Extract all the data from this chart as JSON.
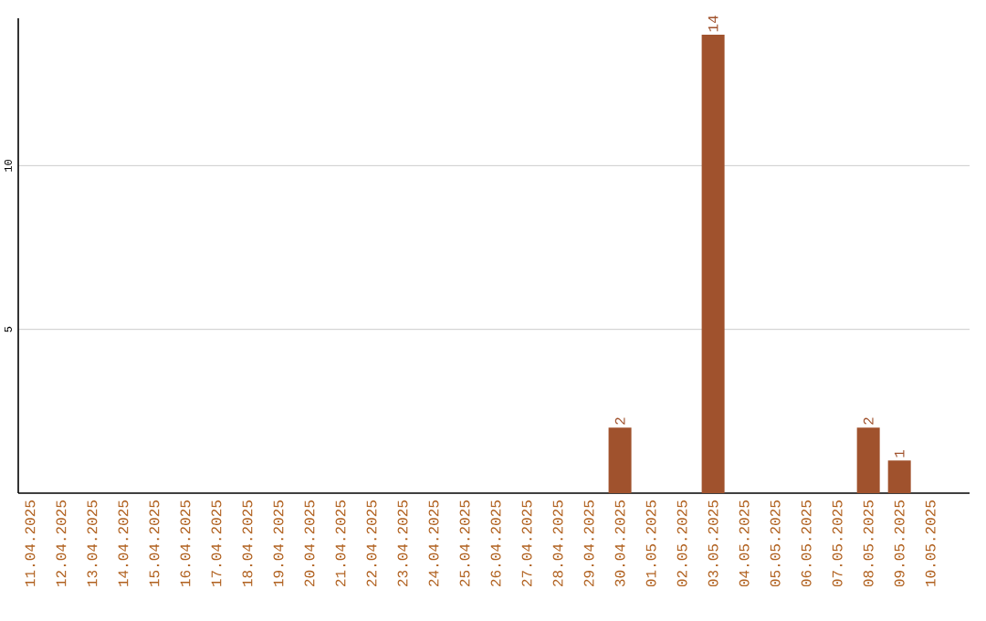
{
  "chart_data": {
    "type": "bar",
    "categories": [
      "11.04.2025",
      "12.04.2025",
      "13.04.2025",
      "14.04.2025",
      "15.04.2025",
      "16.04.2025",
      "17.04.2025",
      "18.04.2025",
      "19.04.2025",
      "20.04.2025",
      "21.04.2025",
      "22.04.2025",
      "23.04.2025",
      "24.04.2025",
      "25.04.2025",
      "26.04.2025",
      "27.04.2025",
      "28.04.2025",
      "29.04.2025",
      "30.04.2025",
      "01.05.2025",
      "02.05.2025",
      "03.05.2025",
      "04.05.2025",
      "05.05.2025",
      "06.05.2025",
      "07.05.2025",
      "08.05.2025",
      "09.05.2025",
      "10.05.2025"
    ],
    "values": [
      0,
      0,
      0,
      0,
      0,
      0,
      0,
      0,
      0,
      0,
      0,
      0,
      0,
      0,
      0,
      0,
      0,
      0,
      0,
      2,
      0,
      0,
      14,
      0,
      0,
      0,
      0,
      2,
      1,
      0
    ],
    "value_labels": [
      null,
      null,
      null,
      null,
      null,
      null,
      null,
      null,
      null,
      null,
      null,
      null,
      null,
      null,
      null,
      null,
      null,
      null,
      null,
      "2",
      null,
      null,
      "14",
      null,
      null,
      null,
      null,
      "2",
      "1",
      null
    ],
    "color": "#a0522d",
    "ylim": [
      0,
      14.5
    ],
    "yticks": [
      5,
      10
    ],
    "grid": "y"
  }
}
